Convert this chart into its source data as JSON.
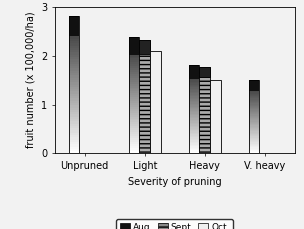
{
  "categories": [
    "Unpruned",
    "Light",
    "Heavy",
    "V. heavy"
  ],
  "series": {
    "Aug.": [
      2.82,
      2.38,
      1.8,
      1.5
    ],
    "Sept.": [
      0.0,
      2.32,
      1.77,
      0.0
    ],
    "Oct.": [
      0.0,
      2.1,
      1.5,
      0.0
    ]
  },
  "bar_width": 0.18,
  "xlabel": "Severity of pruning",
  "ylabel": "fruit number (x 100,000/ha)",
  "ylim": [
    0,
    3
  ],
  "yticks": [
    0,
    1,
    2,
    3
  ],
  "series_order": [
    "Aug.",
    "Sept.",
    "Oct."
  ],
  "colors": {
    "Aug.": "#222222",
    "Sept.": "#888888",
    "Oct.": "#ffffff"
  },
  "hatches": {
    "Aug.": "",
    "Sept.": "---",
    "Oct.": ""
  },
  "legend_fontsize": 6.5,
  "axis_fontsize": 7,
  "tick_fontsize": 7,
  "background_color": "#f2f2f2"
}
